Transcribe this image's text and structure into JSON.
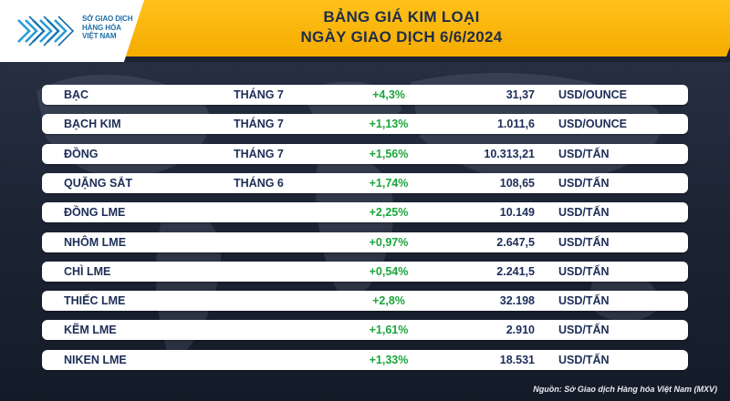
{
  "header": {
    "logo_lines": [
      "SỞ GIAO DỊCH",
      "HÀNG HÓA",
      "VIỆT NAM"
    ],
    "title_line1": "BẢNG GIÁ KIM LOẠI",
    "title_line2": "NGÀY GIAO DỊCH 6/6/2024"
  },
  "colors": {
    "header_yellow": "#f7b300",
    "row_text": "#1c2e57",
    "change_positive": "#1aa53a"
  },
  "rows": [
    {
      "name": "BẠC",
      "month": "THÁNG 7",
      "change": "+4,3%",
      "price": "31,37",
      "unit": "USD/OUNCE"
    },
    {
      "name": "BẠCH KIM",
      "month": "THÁNG 7",
      "change": "+1,13%",
      "price": "1.011,6",
      "unit": "USD/OUNCE"
    },
    {
      "name": "ĐỒNG",
      "month": "THÁNG 7",
      "change": "+1,56%",
      "price": "10.313,21",
      "unit": "USD/TẤN"
    },
    {
      "name": "QUẶNG SẮT",
      "month": "THÁNG 6",
      "change": "+1,74%",
      "price": "108,65",
      "unit": "USD/TẤN"
    },
    {
      "name": "ĐỒNG LME",
      "month": "",
      "change": "+2,25%",
      "price": "10.149",
      "unit": "USD/TẤN"
    },
    {
      "name": "NHÔM LME",
      "month": "",
      "change": "+0,97%",
      "price": "2.647,5",
      "unit": "USD/TẤN"
    },
    {
      "name": "CHÌ LME",
      "month": "",
      "change": "+0,54%",
      "price": "2.241,5",
      "unit": "USD/TẤN"
    },
    {
      "name": "THIẾC LME",
      "month": "",
      "change": "+2,8%",
      "price": "32.198",
      "unit": "USD/TẤN"
    },
    {
      "name": "KẼM LME",
      "month": "",
      "change": "+1,61%",
      "price": "2.910",
      "unit": "USD/TẤN"
    },
    {
      "name": "NIKEN LME",
      "month": "",
      "change": "+1,33%",
      "price": "18.531",
      "unit": "USD/TẤN"
    }
  ],
  "footer": {
    "source": "Nguồn: Sở Giao dịch Hàng hóa Việt Nam (MXV)"
  }
}
